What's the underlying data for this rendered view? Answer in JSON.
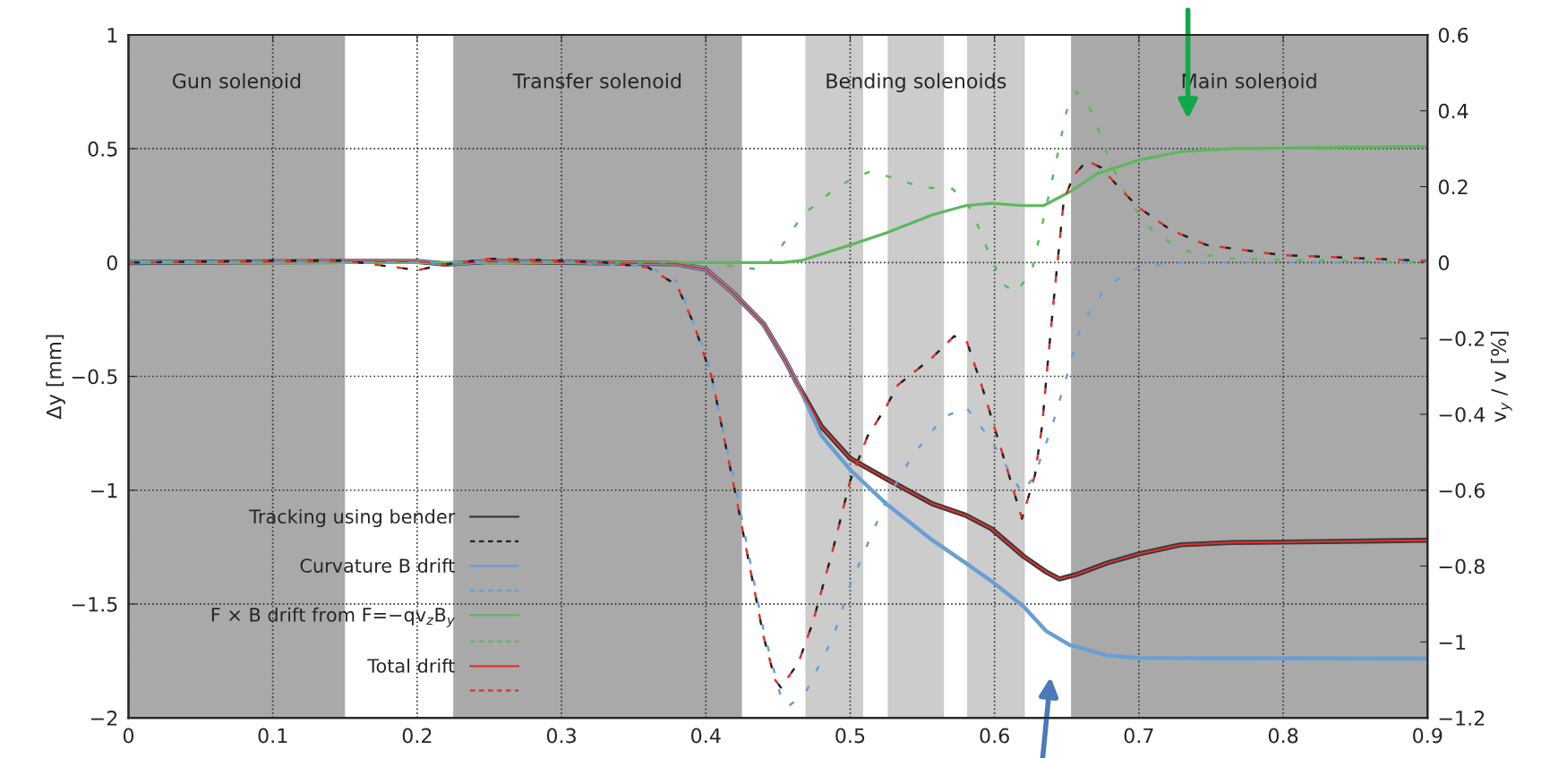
{
  "chart_data": {
    "type": "line",
    "ylabel": "Δy [mm]",
    "y2label": "v$_{y}$ / v [%]",
    "xlim": [
      0,
      0.9
    ],
    "xticks": [
      0,
      0.1,
      0.2,
      0.3,
      0.4,
      0.5,
      0.6,
      0.7,
      0.8,
      0.9
    ],
    "ylim": [
      -2,
      1
    ],
    "yticks": [
      -2,
      -1.5,
      -1,
      -0.5,
      0,
      0.5,
      1
    ],
    "y2lim": [
      -1.2,
      0.6
    ],
    "y2ticks": [
      -1.2,
      -1,
      -0.8,
      -0.6,
      -0.4,
      -0.2,
      0,
      0.2,
      0.4,
      0.6
    ],
    "grid": true,
    "legend": "bottom left",
    "bands": [
      {
        "axis": "x",
        "from": 0,
        "to": 0.15,
        "label": "Gun solenoid",
        "color": "#a9a9a9"
      },
      {
        "axis": "x",
        "from": 0.225,
        "to": 0.425,
        "label": "Transfer solenoid",
        "color": "#a9a9a9"
      },
      {
        "axis": "x",
        "from": 0.469,
        "to": 0.509,
        "label": null,
        "color": "#cccccc"
      },
      {
        "axis": "x",
        "from": 0.526,
        "to": 0.565,
        "label": "Bending solenoids",
        "color": "#cccccc"
      },
      {
        "axis": "x",
        "from": 0.581,
        "to": 0.621,
        "label": null,
        "color": "#cccccc"
      },
      {
        "axis": "x",
        "from": 0.653,
        "to": 0.9,
        "label": "Main solenoid",
        "color": "#a9a9a9"
      }
    ],
    "series": [
      {
        "name": "Tracking using bender",
        "color": "#3a3a3a",
        "line_style": "solid",
        "x": [
          0,
          0.15,
          0.2,
          0.22,
          0.25,
          0.38,
          0.4,
          0.42,
          0.44,
          0.455,
          0.464,
          0.48,
          0.5,
          0.525,
          0.557,
          0.58,
          0.598,
          0.62,
          0.636,
          0.645,
          0.657,
          0.678,
          0.7,
          0.729,
          0.764,
          0.798,
          0.9
        ],
        "values": [
          0,
          0.005,
          0.005,
          -0.007,
          0.005,
          -0.005,
          -0.03,
          -0.14,
          -0.27,
          -0.43,
          -0.54,
          -0.72,
          -0.86,
          -0.95,
          -1.06,
          -1.11,
          -1.17,
          -1.29,
          -1.36,
          -1.39,
          -1.37,
          -1.32,
          -1.28,
          -1.24,
          -1.23,
          -1.228,
          -1.22
        ]
      },
      {
        "name": null,
        "color": "#222222",
        "line_style": "dashed",
        "axis": "y2",
        "x": [
          0,
          0.1,
          0.15,
          0.18,
          0.2,
          0.22,
          0.25,
          0.3,
          0.33,
          0.36,
          0.38,
          0.392,
          0.4,
          0.404,
          0.42,
          0.427,
          0.44,
          0.448,
          0.452,
          0.464,
          0.474,
          0.488,
          0.5,
          0.512,
          0.525,
          0.533,
          0.557,
          0.572,
          0.581,
          0.591,
          0.605,
          0.619,
          0.628,
          0.633,
          0.636,
          0.641,
          0.648,
          0.655,
          0.664,
          0.674,
          0.688,
          0.7,
          0.722,
          0.747,
          0.798,
          0.9
        ],
        "values": [
          0,
          0.005,
          0.005,
          -0.01,
          -0.02,
          -0.005,
          0.01,
          0.005,
          0,
          -0.013,
          -0.06,
          -0.165,
          -0.257,
          -0.3,
          -0.6,
          -0.735,
          -0.986,
          -1.1,
          -1.12,
          -1.056,
          -0.95,
          -0.757,
          -0.575,
          -0.458,
          -0.38,
          -0.323,
          -0.25,
          -0.194,
          -0.21,
          -0.323,
          -0.497,
          -0.675,
          -0.56,
          -0.43,
          -0.3,
          -0.1,
          0.165,
          0.23,
          0.268,
          0.25,
          0.19,
          0.145,
          0.086,
          0.046,
          0.02,
          0.004
        ]
      },
      {
        "name": "Curvature B drift",
        "color": "#6a9fd4",
        "line_style": "solid",
        "x": [
          0,
          0.15,
          0.2,
          0.22,
          0.25,
          0.38,
          0.4,
          0.42,
          0.44,
          0.455,
          0.464,
          0.48,
          0.5,
          0.525,
          0.557,
          0.58,
          0.598,
          0.62,
          0.636,
          0.652,
          0.678,
          0.7,
          0.9
        ],
        "values": [
          0,
          0.005,
          0.005,
          -0.007,
          0.005,
          -0.005,
          -0.03,
          -0.14,
          -0.27,
          -0.43,
          -0.54,
          -0.76,
          -0.91,
          -1.06,
          -1.22,
          -1.32,
          -1.4,
          -1.51,
          -1.62,
          -1.68,
          -1.726,
          -1.737,
          -1.74
        ]
      },
      {
        "name": null,
        "color": "#6a9fd4",
        "line_style": "dashed",
        "axis": "y2",
        "x": [
          0,
          0.3,
          0.36,
          0.38,
          0.4,
          0.42,
          0.44,
          0.453,
          0.457,
          0.469,
          0.488,
          0.5,
          0.525,
          0.543,
          0.564,
          0.58,
          0.598,
          0.619,
          0.628,
          0.64,
          0.65,
          0.66,
          0.678,
          0.7,
          0.729,
          0.9
        ],
        "values": [
          0,
          0,
          -0.01,
          -0.05,
          -0.24,
          -0.58,
          -0.97,
          -1.16,
          -1.17,
          -1.134,
          -0.99,
          -0.85,
          -0.627,
          -0.51,
          -0.41,
          -0.38,
          -0.47,
          -0.608,
          -0.56,
          -0.43,
          -0.3,
          -0.165,
          -0.06,
          -0.013,
          0,
          0
        ]
      },
      {
        "name": "F × B drift from F=−qv$_{z}$B$_{y}$",
        "color": "#5cb85c",
        "line_style": "solid",
        "x": [
          0,
          0.453,
          0.467,
          0.5,
          0.525,
          0.557,
          0.58,
          0.598,
          0.619,
          0.634,
          0.652,
          0.671,
          0.7,
          0.729,
          0.764,
          0.9
        ],
        "values": [
          0,
          0,
          0.01,
          0.077,
          0.13,
          0.21,
          0.25,
          0.26,
          0.25,
          0.25,
          0.31,
          0.39,
          0.45,
          0.487,
          0.5,
          0.51
        ]
      },
      {
        "name": null,
        "color": "#5cb85c",
        "line_style": "dashed",
        "axis": "y2",
        "x": [
          0,
          0.4,
          0.44,
          0.453,
          0.467,
          0.488,
          0.5,
          0.514,
          0.529,
          0.55,
          0.571,
          0.584,
          0.598,
          0.607,
          0.615,
          0.626,
          0.64,
          0.65,
          0.657,
          0.667,
          0.681,
          0.695,
          0.712,
          0.736,
          0.764,
          0.9
        ],
        "values": [
          0,
          0,
          -0.02,
          0.046,
          0.125,
          0.19,
          0.218,
          0.24,
          0.224,
          0.198,
          0.194,
          0.14,
          0.007,
          -0.06,
          -0.08,
          -0.02,
          0.218,
          0.4,
          0.45,
          0.4,
          0.257,
          0.152,
          0.073,
          0.026,
          0.01,
          0
        ]
      },
      {
        "name": "Total drift",
        "color": "#e0302a",
        "line_style": "solid",
        "x": [
          0,
          0.15,
          0.2,
          0.22,
          0.25,
          0.38,
          0.4,
          0.42,
          0.44,
          0.455,
          0.464,
          0.48,
          0.5,
          0.525,
          0.557,
          0.58,
          0.598,
          0.62,
          0.636,
          0.645,
          0.657,
          0.678,
          0.7,
          0.729,
          0.764,
          0.798,
          0.9
        ],
        "values": [
          0,
          0.005,
          0.005,
          -0.007,
          0.005,
          -0.005,
          -0.03,
          -0.14,
          -0.27,
          -0.43,
          -0.54,
          -0.72,
          -0.86,
          -0.95,
          -1.06,
          -1.11,
          -1.17,
          -1.29,
          -1.36,
          -1.39,
          -1.37,
          -1.32,
          -1.28,
          -1.24,
          -1.23,
          -1.228,
          -1.22
        ]
      },
      {
        "name": null,
        "color": "#e0302a",
        "line_style": "dashed",
        "axis": "y2",
        "x": [
          0,
          0.1,
          0.15,
          0.18,
          0.2,
          0.22,
          0.25,
          0.3,
          0.33,
          0.36,
          0.38,
          0.392,
          0.4,
          0.404,
          0.42,
          0.427,
          0.44,
          0.448,
          0.452,
          0.464,
          0.474,
          0.488,
          0.5,
          0.512,
          0.525,
          0.533,
          0.557,
          0.572,
          0.581,
          0.591,
          0.605,
          0.619,
          0.628,
          0.633,
          0.636,
          0.641,
          0.648,
          0.655,
          0.664,
          0.674,
          0.688,
          0.7,
          0.722,
          0.747,
          0.798,
          0.9
        ],
        "values": [
          0,
          0.005,
          0.005,
          -0.01,
          -0.02,
          -0.005,
          0.01,
          0.005,
          0,
          -0.013,
          -0.06,
          -0.165,
          -0.257,
          -0.3,
          -0.6,
          -0.735,
          -0.986,
          -1.1,
          -1.12,
          -1.056,
          -0.95,
          -0.757,
          -0.575,
          -0.458,
          -0.38,
          -0.323,
          -0.25,
          -0.194,
          -0.21,
          -0.323,
          -0.497,
          -0.675,
          -0.56,
          -0.43,
          -0.3,
          -0.1,
          0.165,
          0.23,
          0.268,
          0.25,
          0.19,
          0.145,
          0.086,
          0.046,
          0.02,
          0.004
        ]
      }
    ]
  }
}
